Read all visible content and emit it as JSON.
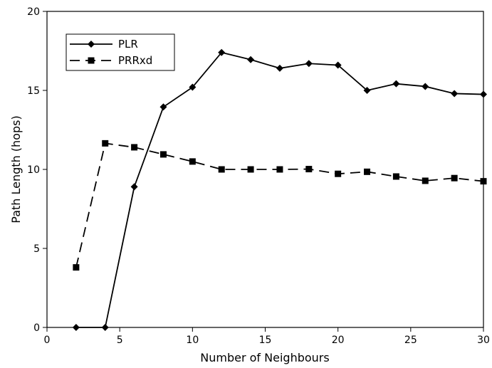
{
  "chart_data": {
    "type": "line",
    "title": "",
    "xlabel": "Number of Neighbours",
    "ylabel": "Path Length (hops)",
    "xlim": [
      0,
      30
    ],
    "ylim": [
      0,
      20
    ],
    "xticks": [
      0,
      5,
      10,
      15,
      20,
      25,
      30
    ],
    "yticks": [
      0,
      5,
      10,
      15,
      20
    ],
    "grid": false,
    "legend_position": "top-left",
    "series": [
      {
        "name": "PLR",
        "style": "solid",
        "marker": "diamond",
        "color": "#000000",
        "x": [
          2,
          4,
          6,
          8,
          10,
          12,
          14,
          16,
          18,
          20,
          22,
          24,
          26,
          28,
          30
        ],
        "y": [
          0,
          0,
          8.9,
          13.95,
          15.2,
          17.4,
          16.95,
          16.4,
          16.7,
          16.6,
          15.0,
          15.42,
          15.25,
          14.8,
          14.75
        ]
      },
      {
        "name": "PRRxd",
        "style": "dashed",
        "marker": "square",
        "color": "#000000",
        "x": [
          2,
          4,
          6,
          8,
          10,
          12,
          14,
          16,
          18,
          20,
          22,
          24,
          26,
          28,
          30
        ],
        "y": [
          3.8,
          11.65,
          11.4,
          10.95,
          10.5,
          10.0,
          10.0,
          10.0,
          10.02,
          9.72,
          9.85,
          9.55,
          9.28,
          9.45,
          9.25
        ]
      }
    ]
  }
}
